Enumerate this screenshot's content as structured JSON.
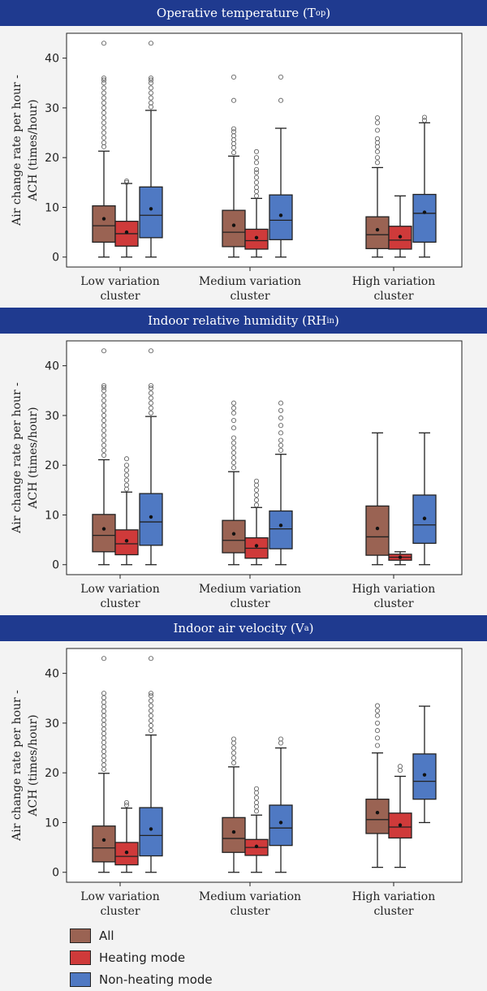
{
  "colors": {
    "all": "#9a6353",
    "heating": "#cf3a3a",
    "nonheating": "#4f79c3",
    "banner": "#1f3a8f"
  },
  "legend": [
    {
      "key": "all",
      "label": "All"
    },
    {
      "key": "heating",
      "label": "Heating mode"
    },
    {
      "key": "nonheating",
      "label": "Non-heating mode"
    }
  ],
  "chart_data": [
    {
      "type": "box",
      "title": "Operative temperature (Top)",
      "title_main": "Operative temperature (T",
      "title_sub": "op",
      "title_end": ")",
      "ylabel_line1": "Air change rate per hour -",
      "ylabel_line2": "ACH (times/hour)",
      "ylim": [
        -2,
        45
      ],
      "yticks": [
        0,
        10,
        20,
        30,
        40
      ],
      "categories": [
        [
          "Low variation",
          "cluster"
        ],
        [
          "Medium variation",
          "cluster"
        ],
        [
          "High variation",
          "cluster"
        ]
      ],
      "series": [
        {
          "name": "All",
          "key": "all",
          "boxes": [
            {
              "min": 0,
              "q1": 3.0,
              "median": 6.3,
              "q3": 10.3,
              "max": 21.3,
              "mean": 7.7,
              "outliers": [
                22.2,
                23.0,
                24.0,
                25.0,
                26.0,
                27.0,
                28.0,
                29.0,
                30.0,
                31.0,
                32.0,
                33.0,
                34.0,
                35.0,
                35.6,
                36.0,
                43.0
              ]
            },
            {
              "min": 0,
              "q1": 2.1,
              "median": 5.0,
              "q3": 9.4,
              "max": 20.3,
              "mean": 6.4,
              "outliers": [
                21.0,
                22.0,
                22.8,
                23.6,
                24.4,
                25.2,
                25.8,
                31.5,
                36.2
              ]
            },
            {
              "min": 0,
              "q1": 1.7,
              "median": 4.5,
              "q3": 8.1,
              "max": 18.0,
              "mean": 5.5,
              "outliers": [
                19.0,
                20.0,
                21.2,
                22.2,
                23.0,
                23.8,
                25.5,
                27.0,
                28.0
              ]
            }
          ]
        },
        {
          "name": "Heating mode",
          "key": "heating",
          "boxes": [
            {
              "min": 0,
              "q1": 2.2,
              "median": 4.7,
              "q3": 7.2,
              "max": 14.8,
              "mean": 5.0,
              "outliers": [
                15.0,
                15.3
              ]
            },
            {
              "min": 0,
              "q1": 1.6,
              "median": 3.3,
              "q3": 5.6,
              "max": 11.8,
              "mean": 3.9,
              "outliers": [
                12.3,
                13.2,
                14.0,
                15.0,
                16.0,
                17.0,
                17.6,
                19.0,
                20.0,
                21.2
              ]
            },
            {
              "min": 0,
              "q1": 1.6,
              "median": 3.4,
              "q3": 6.2,
              "max": 12.3,
              "mean": 4.1,
              "outliers": []
            }
          ]
        },
        {
          "name": "Non-heating mode",
          "key": "nonheating",
          "boxes": [
            {
              "min": 0,
              "q1": 3.9,
              "median": 8.4,
              "q3": 14.1,
              "max": 29.5,
              "mean": 9.7,
              "outliers": [
                30.2,
                31.0,
                32.0,
                33.0,
                34.0,
                35.0,
                35.6,
                36.0,
                43.0
              ]
            },
            {
              "min": 0,
              "q1": 3.5,
              "median": 7.4,
              "q3": 12.5,
              "max": 25.9,
              "mean": 8.4,
              "outliers": [
                31.5,
                36.2
              ]
            },
            {
              "min": 0,
              "q1": 3.0,
              "median": 8.8,
              "q3": 12.6,
              "max": 27.0,
              "mean": 9.0,
              "outliers": [
                27.5,
                28.1
              ]
            }
          ]
        }
      ]
    },
    {
      "type": "box",
      "title": "Indoor relative humidity (RHin)",
      "title_main": "Indoor relative humidity (RH",
      "title_sub": "in",
      "title_end": ")",
      "ylabel_line1": "Air change rate per hour -",
      "ylabel_line2": "ACH (times/hour)",
      "ylim": [
        -2,
        45
      ],
      "yticks": [
        0,
        10,
        20,
        30,
        40
      ],
      "categories": [
        [
          "Low variation",
          "cluster"
        ],
        [
          "Medium variation",
          "cluster"
        ],
        [
          "High variation",
          "cluster"
        ]
      ],
      "series": [
        {
          "name": "All",
          "key": "all",
          "boxes": [
            {
              "min": 0,
              "q1": 2.6,
              "median": 5.9,
              "q3": 10.1,
              "max": 21.1,
              "mean": 7.2,
              "outliers": [
                22.0,
                23.0,
                24.0,
                25.0,
                26.0,
                27.0,
                28.0,
                29.0,
                30.0,
                31.0,
                32.0,
                33.0,
                34.0,
                35.0,
                35.6,
                36.0,
                43.0
              ]
            },
            {
              "min": 0,
              "q1": 2.4,
              "median": 4.9,
              "q3": 8.9,
              "max": 18.7,
              "mean": 6.2,
              "outliers": [
                19.5,
                20.5,
                21.5,
                22.5,
                23.5,
                24.5,
                25.5,
                27.5,
                29.0,
                30.5,
                31.5,
                32.5
              ]
            },
            {
              "min": 0,
              "q1": 1.9,
              "median": 5.6,
              "q3": 11.8,
              "max": 26.5,
              "mean": 7.3,
              "outliers": []
            }
          ]
        },
        {
          "name": "Heating mode",
          "key": "heating",
          "boxes": [
            {
              "min": 0,
              "q1": 2.0,
              "median": 4.2,
              "q3": 7.0,
              "max": 14.6,
              "mean": 4.8,
              "outliers": [
                15.2,
                16.0,
                17.0,
                18.0,
                19.0,
                20.0,
                21.3
              ]
            },
            {
              "min": 0,
              "q1": 1.3,
              "median": 3.3,
              "q3": 5.4,
              "max": 11.5,
              "mean": 3.8,
              "outliers": [
                12.0,
                13.0,
                14.0,
                15.0,
                16.0,
                16.8
              ]
            },
            {
              "min": 0,
              "q1": 0.9,
              "median": 1.5,
              "q3": 2.1,
              "max": 2.6,
              "mean": 1.5,
              "outliers": []
            }
          ]
        },
        {
          "name": "Non-heating mode",
          "key": "nonheating",
          "boxes": [
            {
              "min": 0,
              "q1": 3.9,
              "median": 8.6,
              "q3": 14.3,
              "max": 29.8,
              "mean": 9.6,
              "outliers": [
                30.5,
                31.5,
                32.5,
                33.5,
                34.5,
                35.5,
                36.0,
                43.0
              ]
            },
            {
              "min": 0,
              "q1": 3.2,
              "median": 7.2,
              "q3": 10.8,
              "max": 22.2,
              "mean": 7.9,
              "outliers": [
                23.0,
                24.0,
                25.0,
                26.5,
                28.0,
                29.5,
                31.0,
                32.5
              ]
            },
            {
              "min": 0,
              "q1": 4.3,
              "median": 8.0,
              "q3": 14.0,
              "max": 26.5,
              "mean": 9.3,
              "outliers": []
            }
          ]
        }
      ]
    },
    {
      "type": "box",
      "title": "Indoor air velocity (Va)",
      "title_main": "Indoor air velocity (V",
      "title_sub": "a",
      "title_end": ")",
      "ylabel_line1": "Air change rate per hour -",
      "ylabel_line2": "ACH (times/hour)",
      "ylim": [
        -2,
        45
      ],
      "yticks": [
        0,
        10,
        20,
        30,
        40
      ],
      "categories": [
        [
          "Low variation",
          "cluster"
        ],
        [
          "Medium variation",
          "cluster"
        ],
        [
          "High variation",
          "cluster"
        ]
      ],
      "series": [
        {
          "name": "All",
          "key": "all",
          "boxes": [
            {
              "min": 0,
              "q1": 2.1,
              "median": 4.9,
              "q3": 9.3,
              "max": 19.9,
              "mean": 6.5,
              "outliers": [
                20.7,
                21.6,
                22.5,
                23.4,
                24.3,
                25.2,
                26.1,
                27.0,
                27.9,
                28.8,
                29.7,
                30.6,
                31.5,
                32.4,
                33.3,
                34.2,
                35.1,
                36.0,
                43.0
              ]
            },
            {
              "min": 0,
              "q1": 4.0,
              "median": 6.8,
              "q3": 11.0,
              "max": 21.2,
              "mean": 8.1,
              "outliers": [
                22.0,
                23.0,
                24.0,
                25.0,
                26.0,
                26.8
              ]
            },
            {
              "min": 1.0,
              "q1": 7.8,
              "median": 10.6,
              "q3": 14.7,
              "max": 24.0,
              "mean": 12.0,
              "outliers": [
                25.5,
                27.0,
                28.5,
                30.0,
                31.5,
                32.5,
                33.5
              ]
            }
          ]
        },
        {
          "name": "Heating mode",
          "key": "heating",
          "boxes": [
            {
              "min": 0,
              "q1": 1.5,
              "median": 3.2,
              "q3": 6.0,
              "max": 12.9,
              "mean": 4.0,
              "outliers": [
                13.5,
                14.0
              ]
            },
            {
              "min": 0,
              "q1": 3.4,
              "median": 5.0,
              "q3": 6.6,
              "max": 11.5,
              "mean": 5.2,
              "outliers": [
                12.3,
                13.2,
                14.0,
                15.0,
                16.0,
                16.8
              ]
            },
            {
              "min": 1.0,
              "q1": 6.9,
              "median": 9.1,
              "q3": 11.9,
              "max": 19.3,
              "mean": 9.5,
              "outliers": [
                20.5,
                21.3
              ]
            }
          ]
        },
        {
          "name": "Non-heating mode",
          "key": "nonheating",
          "boxes": [
            {
              "min": 0,
              "q1": 3.3,
              "median": 7.4,
              "q3": 13.0,
              "max": 27.6,
              "mean": 8.7,
              "outliers": [
                28.5,
                29.5,
                30.5,
                31.5,
                32.5,
                33.5,
                34.5,
                35.5,
                36.0,
                43.0
              ]
            },
            {
              "min": 0,
              "q1": 5.4,
              "median": 8.9,
              "q3": 13.5,
              "max": 25.0,
              "mean": 10.0,
              "outliers": [
                26.0,
                26.8
              ]
            },
            {
              "min": 10.0,
              "q1": 14.7,
              "median": 18.3,
              "q3": 23.8,
              "max": 33.4,
              "mean": 19.6,
              "outliers": []
            }
          ]
        }
      ]
    }
  ]
}
